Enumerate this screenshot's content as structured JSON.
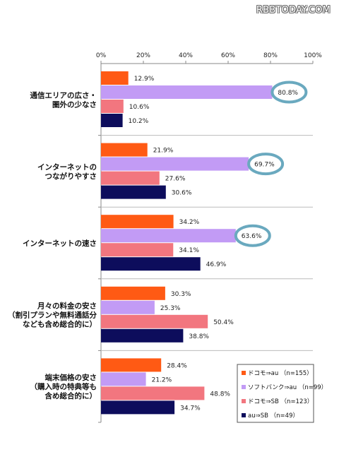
{
  "watermark": "RBBTODAY.COM",
  "colors": {
    "docomo_au": "#ff5a14",
    "softbank_au": "#c29bf5",
    "docomo_sb": "#f2767f",
    "au_sb": "#0d0d5c",
    "highlight_ring": "#6aa9bf",
    "grid": "#888888",
    "separator": "#bbbbbb"
  },
  "chart_data": {
    "type": "bar",
    "orientation": "horizontal",
    "xlim": [
      0,
      100
    ],
    "x_ticks": [
      "0%",
      "20%",
      "40%",
      "60%",
      "80%",
      "100%"
    ],
    "grid": false,
    "legend_position": "bottom-right",
    "categories": [
      [
        "通信エリアの広さ・",
        "圏外の少なさ"
      ],
      [
        "インターネットの",
        "つながりやすさ"
      ],
      [
        "インターネットの速さ"
      ],
      [
        "月々の料金の安さ",
        "（割引プランや無料通話分",
        "なども含め総合的に）"
      ],
      [
        "端末価格の安さ",
        "（購入時の特典等も",
        "含め総合的に）"
      ]
    ],
    "series": [
      {
        "name": "ドコモ⇒au （n=155）",
        "values": [
          12.9,
          21.9,
          34.2,
          30.3,
          28.4
        ],
        "labels": [
          "12.9%",
          "21.9%",
          "34.2%",
          "30.3%",
          "28.4%"
        ]
      },
      {
        "name": "ソフトバンク⇒au （n=99）",
        "values": [
          80.8,
          69.7,
          63.6,
          25.3,
          21.2
        ],
        "labels": [
          "80.8%",
          "69.7%",
          "63.6%",
          "25.3%",
          "21.2%"
        ]
      },
      {
        "name": "ドコモ⇒SB （n=123）",
        "values": [
          10.6,
          27.6,
          34.1,
          50.4,
          48.8
        ],
        "labels": [
          "10.6%",
          "27.6%",
          "34.1%",
          "50.4%",
          "48.8%"
        ]
      },
      {
        "name": "au⇒SB （n=49）",
        "values": [
          10.2,
          30.6,
          46.9,
          38.8,
          34.7
        ],
        "labels": [
          "10.2%",
          "30.6%",
          "46.9%",
          "38.8%",
          "34.7%"
        ]
      }
    ],
    "highlighted": [
      {
        "category_index": 0,
        "series_index": 1
      },
      {
        "category_index": 1,
        "series_index": 1
      },
      {
        "category_index": 2,
        "series_index": 1
      }
    ]
  }
}
